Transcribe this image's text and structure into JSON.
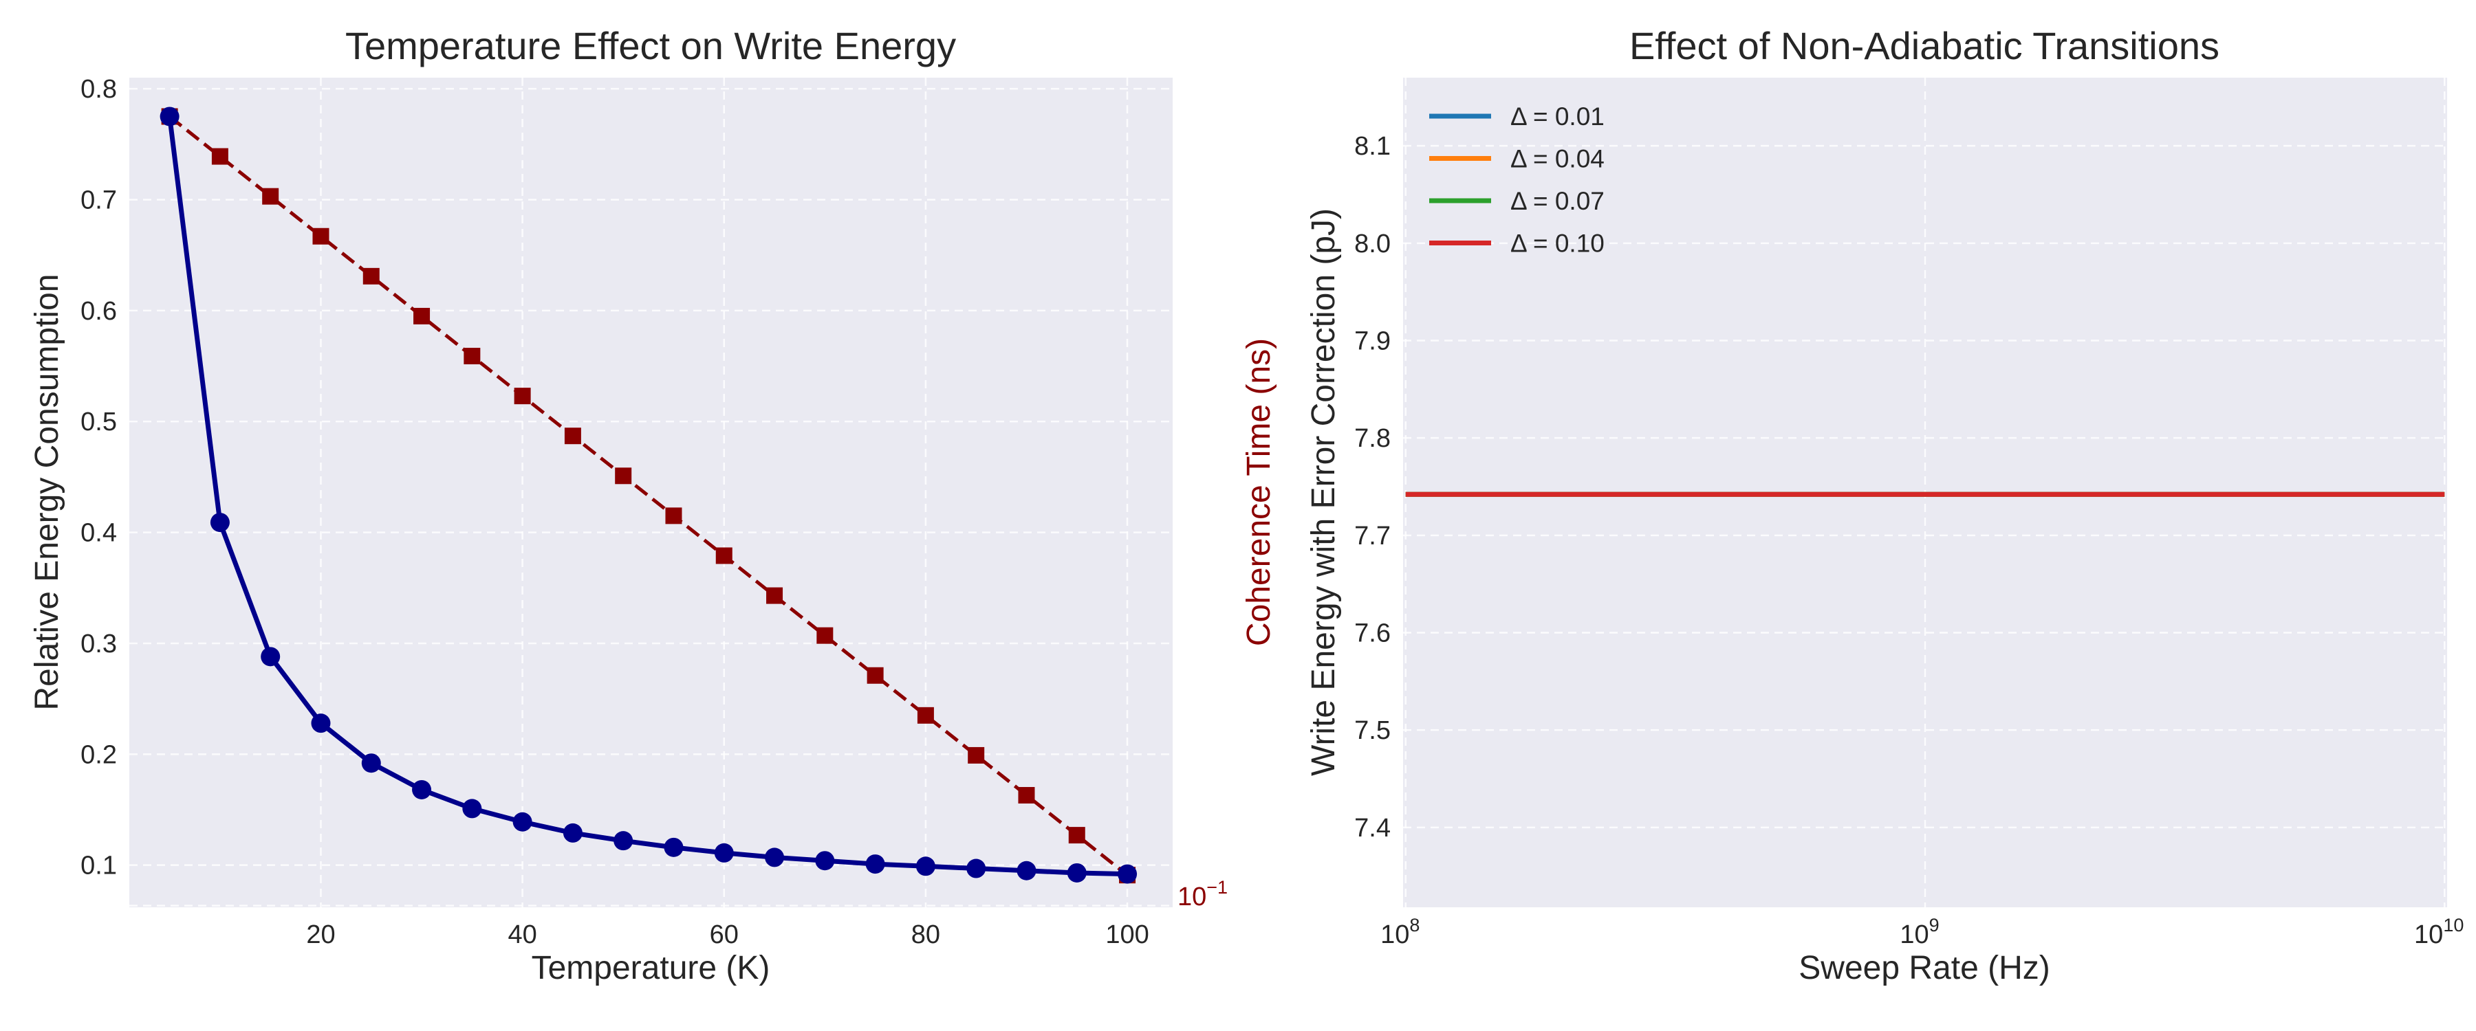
{
  "chart_data": [
    {
      "type": "line",
      "title": "Temperature Effect on Write Energy",
      "xlabel": "Temperature (K)",
      "ylabel": "Relative Energy Consumption",
      "y2label": "Coherence Time (ns)",
      "xlim": [
        1,
        104.5
      ],
      "ylim": [
        0.062,
        0.81
      ],
      "xticks": [
        "20",
        "40",
        "60",
        "80",
        "100"
      ],
      "yticks": [
        "0.1",
        "0.2",
        "0.3",
        "0.4",
        "0.5",
        "0.6",
        "0.7",
        "0.8"
      ],
      "y2_tick_label": "10",
      "y2_tick_exponent": "−1",
      "y2_tick_value": 0.1,
      "x": [
        5,
        10,
        15,
        20,
        25,
        30,
        35,
        40,
        45,
        50,
        55,
        60,
        65,
        70,
        75,
        80,
        85,
        90,
        95,
        100
      ],
      "series": [
        {
          "name": "Relative Energy Consumption",
          "axis": "left",
          "color": "#00008b",
          "marker": "circle",
          "style": "solid",
          "values": [
            0.775,
            0.409,
            0.288,
            0.228,
            0.192,
            0.168,
            0.151,
            0.139,
            0.129,
            0.122,
            0.116,
            0.111,
            0.107,
            0.104,
            0.101,
            0.099,
            0.097,
            0.095,
            0.093,
            0.092
          ]
        },
        {
          "name": "Coherence Time (ns)",
          "axis": "right",
          "color": "#8b0000",
          "marker": "square",
          "style": "dashed",
          "values": [
            0.775,
            0.739,
            0.703,
            0.667,
            0.631,
            0.595,
            0.559,
            0.523,
            0.487,
            0.451,
            0.415,
            0.379,
            0.343,
            0.307,
            0.271,
            0.235,
            0.199,
            0.163,
            0.127,
            0.091
          ]
        }
      ]
    },
    {
      "type": "line",
      "title": "Effect of Non-Adiabatic Transitions",
      "xlabel": "Sweep Rate (Hz)",
      "ylabel": "Write Energy with Error Correction (pJ)",
      "xscale": "log",
      "xlim_log10": [
        7.995,
        10.005
      ],
      "ylim": [
        7.318,
        8.17
      ],
      "xticks": [
        {
          "base": "10",
          "exp": "8"
        },
        {
          "base": "10",
          "exp": "9"
        },
        {
          "base": "10",
          "exp": "10"
        }
      ],
      "yticks": [
        "7.4",
        "7.5",
        "7.6",
        "7.7",
        "7.8",
        "7.9",
        "8.0",
        "8.1"
      ],
      "x_log10": [
        8,
        10
      ],
      "legend_position": "upper left",
      "series": [
        {
          "name": "Δ = 0.01",
          "color": "#1f77b4",
          "values": [
            7.742,
            7.742
          ]
        },
        {
          "name": "Δ = 0.04",
          "color": "#ff7f0e",
          "values": [
            7.742,
            7.742
          ]
        },
        {
          "name": "Δ = 0.07",
          "color": "#2ca02c",
          "values": [
            7.742,
            7.742
          ]
        },
        {
          "name": "Δ = 0.10",
          "color": "#d62728",
          "values": [
            7.742,
            7.742
          ]
        }
      ]
    }
  ]
}
